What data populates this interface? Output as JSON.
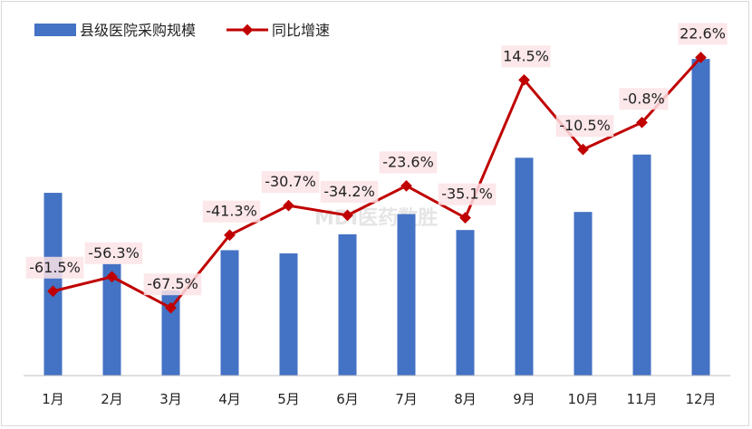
{
  "chart_data": {
    "type": "bar+line",
    "categories": [
      "1月",
      "2月",
      "3月",
      "4月",
      "5月",
      "6月",
      "7月",
      "8月",
      "9月",
      "10月",
      "11月",
      "12月"
    ],
    "series": [
      {
        "name": "县级医院采购规模",
        "type": "bar",
        "color": "#4472C4",
        "values": [
          172,
          105,
          80,
          118,
          115,
          133,
          152,
          137,
          205,
          154,
          208,
          298
        ]
      },
      {
        "name": "同比增速",
        "type": "line",
        "color": "#C00000",
        "values": [
          -61.5,
          -56.3,
          -67.5,
          -41.3,
          -30.7,
          -34.2,
          -23.6,
          -35.1,
          14.5,
          -10.5,
          -0.8,
          22.6
        ],
        "labels": [
          "-61.5%",
          "-56.3%",
          "-67.5%",
          "-41.3%",
          "-30.7%",
          "-34.2%",
          "-23.6%",
          "-35.1%",
          "14.5%",
          "-10.5%",
          "-0.8%",
          "22.6%"
        ]
      }
    ],
    "legend_position": "top-left",
    "watermark": "MDI医药数胜",
    "grid": false
  }
}
